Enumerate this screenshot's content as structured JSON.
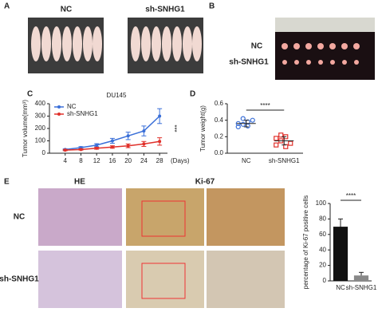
{
  "figure": {
    "panel_letters": [
      "A",
      "B",
      "C",
      "D",
      "E"
    ],
    "a_labels": [
      "NC",
      "sh-SNHG1"
    ],
    "b_labels": [
      "NC",
      "sh-SNHG1"
    ],
    "e_columns": [
      "HE",
      "Ki-67"
    ],
    "e_rows": [
      "NC",
      "sh-SNHG1"
    ]
  },
  "chart_data": [
    {
      "type": "line",
      "title": "DU145",
      "ylabel": "Tumor volume(mm³)",
      "xlabel": "(Days)",
      "x": [
        4,
        8,
        12,
        16,
        20,
        24,
        28
      ],
      "xlim": [
        0,
        30
      ],
      "xticks": [
        4,
        8,
        12,
        16,
        20,
        24,
        28
      ],
      "ylim": [
        0,
        400
      ],
      "yticks": [
        0,
        100,
        200,
        300,
        400
      ],
      "annotation": "***",
      "series": [
        {
          "name": "NC",
          "color": "#3a6fd8",
          "values": [
            30,
            45,
            65,
            100,
            140,
            180,
            300
          ],
          "errors": [
            5,
            8,
            12,
            20,
            30,
            40,
            60
          ]
        },
        {
          "name": "sh-SNHG1",
          "color": "#e0302a",
          "values": [
            25,
            30,
            40,
            50,
            60,
            75,
            95
          ],
          "errors": [
            5,
            5,
            8,
            10,
            15,
            20,
            30
          ]
        }
      ]
    },
    {
      "type": "scatter",
      "ylabel": "Tumor weight(g)",
      "categories": [
        "NC",
        "sh-SNHG1"
      ],
      "ylim": [
        0,
        0.6
      ],
      "yticks": [
        {
          "value": 0,
          "label": "0.0"
        },
        {
          "value": 0.2,
          "label": "0.2"
        },
        {
          "value": 0.4,
          "label": "0.4"
        },
        {
          "value": 0.6,
          "label": "0.6"
        }
      ],
      "annotation": "****",
      "series": [
        {
          "name": "NC",
          "color": "#3a6fd8",
          "points": [
            0.32,
            0.35,
            0.38,
            0.4,
            0.36,
            0.42,
            0.33
          ],
          "mean": 0.36,
          "error": 0.04
        },
        {
          "name": "sh-SNHG1",
          "color": "#e0302a",
          "points": [
            0.1,
            0.15,
            0.2,
            0.12,
            0.18,
            0.22,
            0.08
          ],
          "mean": 0.15,
          "error": 0.05
        }
      ]
    },
    {
      "type": "bar",
      "ylabel": "percentage of Ki-67 positive cells",
      "categories": [
        "NC",
        "sh-SNHG1"
      ],
      "values": [
        70,
        7
      ],
      "errors": [
        10,
        4
      ],
      "colors": [
        "#111111",
        "#888888"
      ],
      "ylim": [
        0,
        100
      ],
      "yticks": [
        0,
        20,
        40,
        60,
        80,
        100
      ],
      "annotation": "****"
    }
  ]
}
